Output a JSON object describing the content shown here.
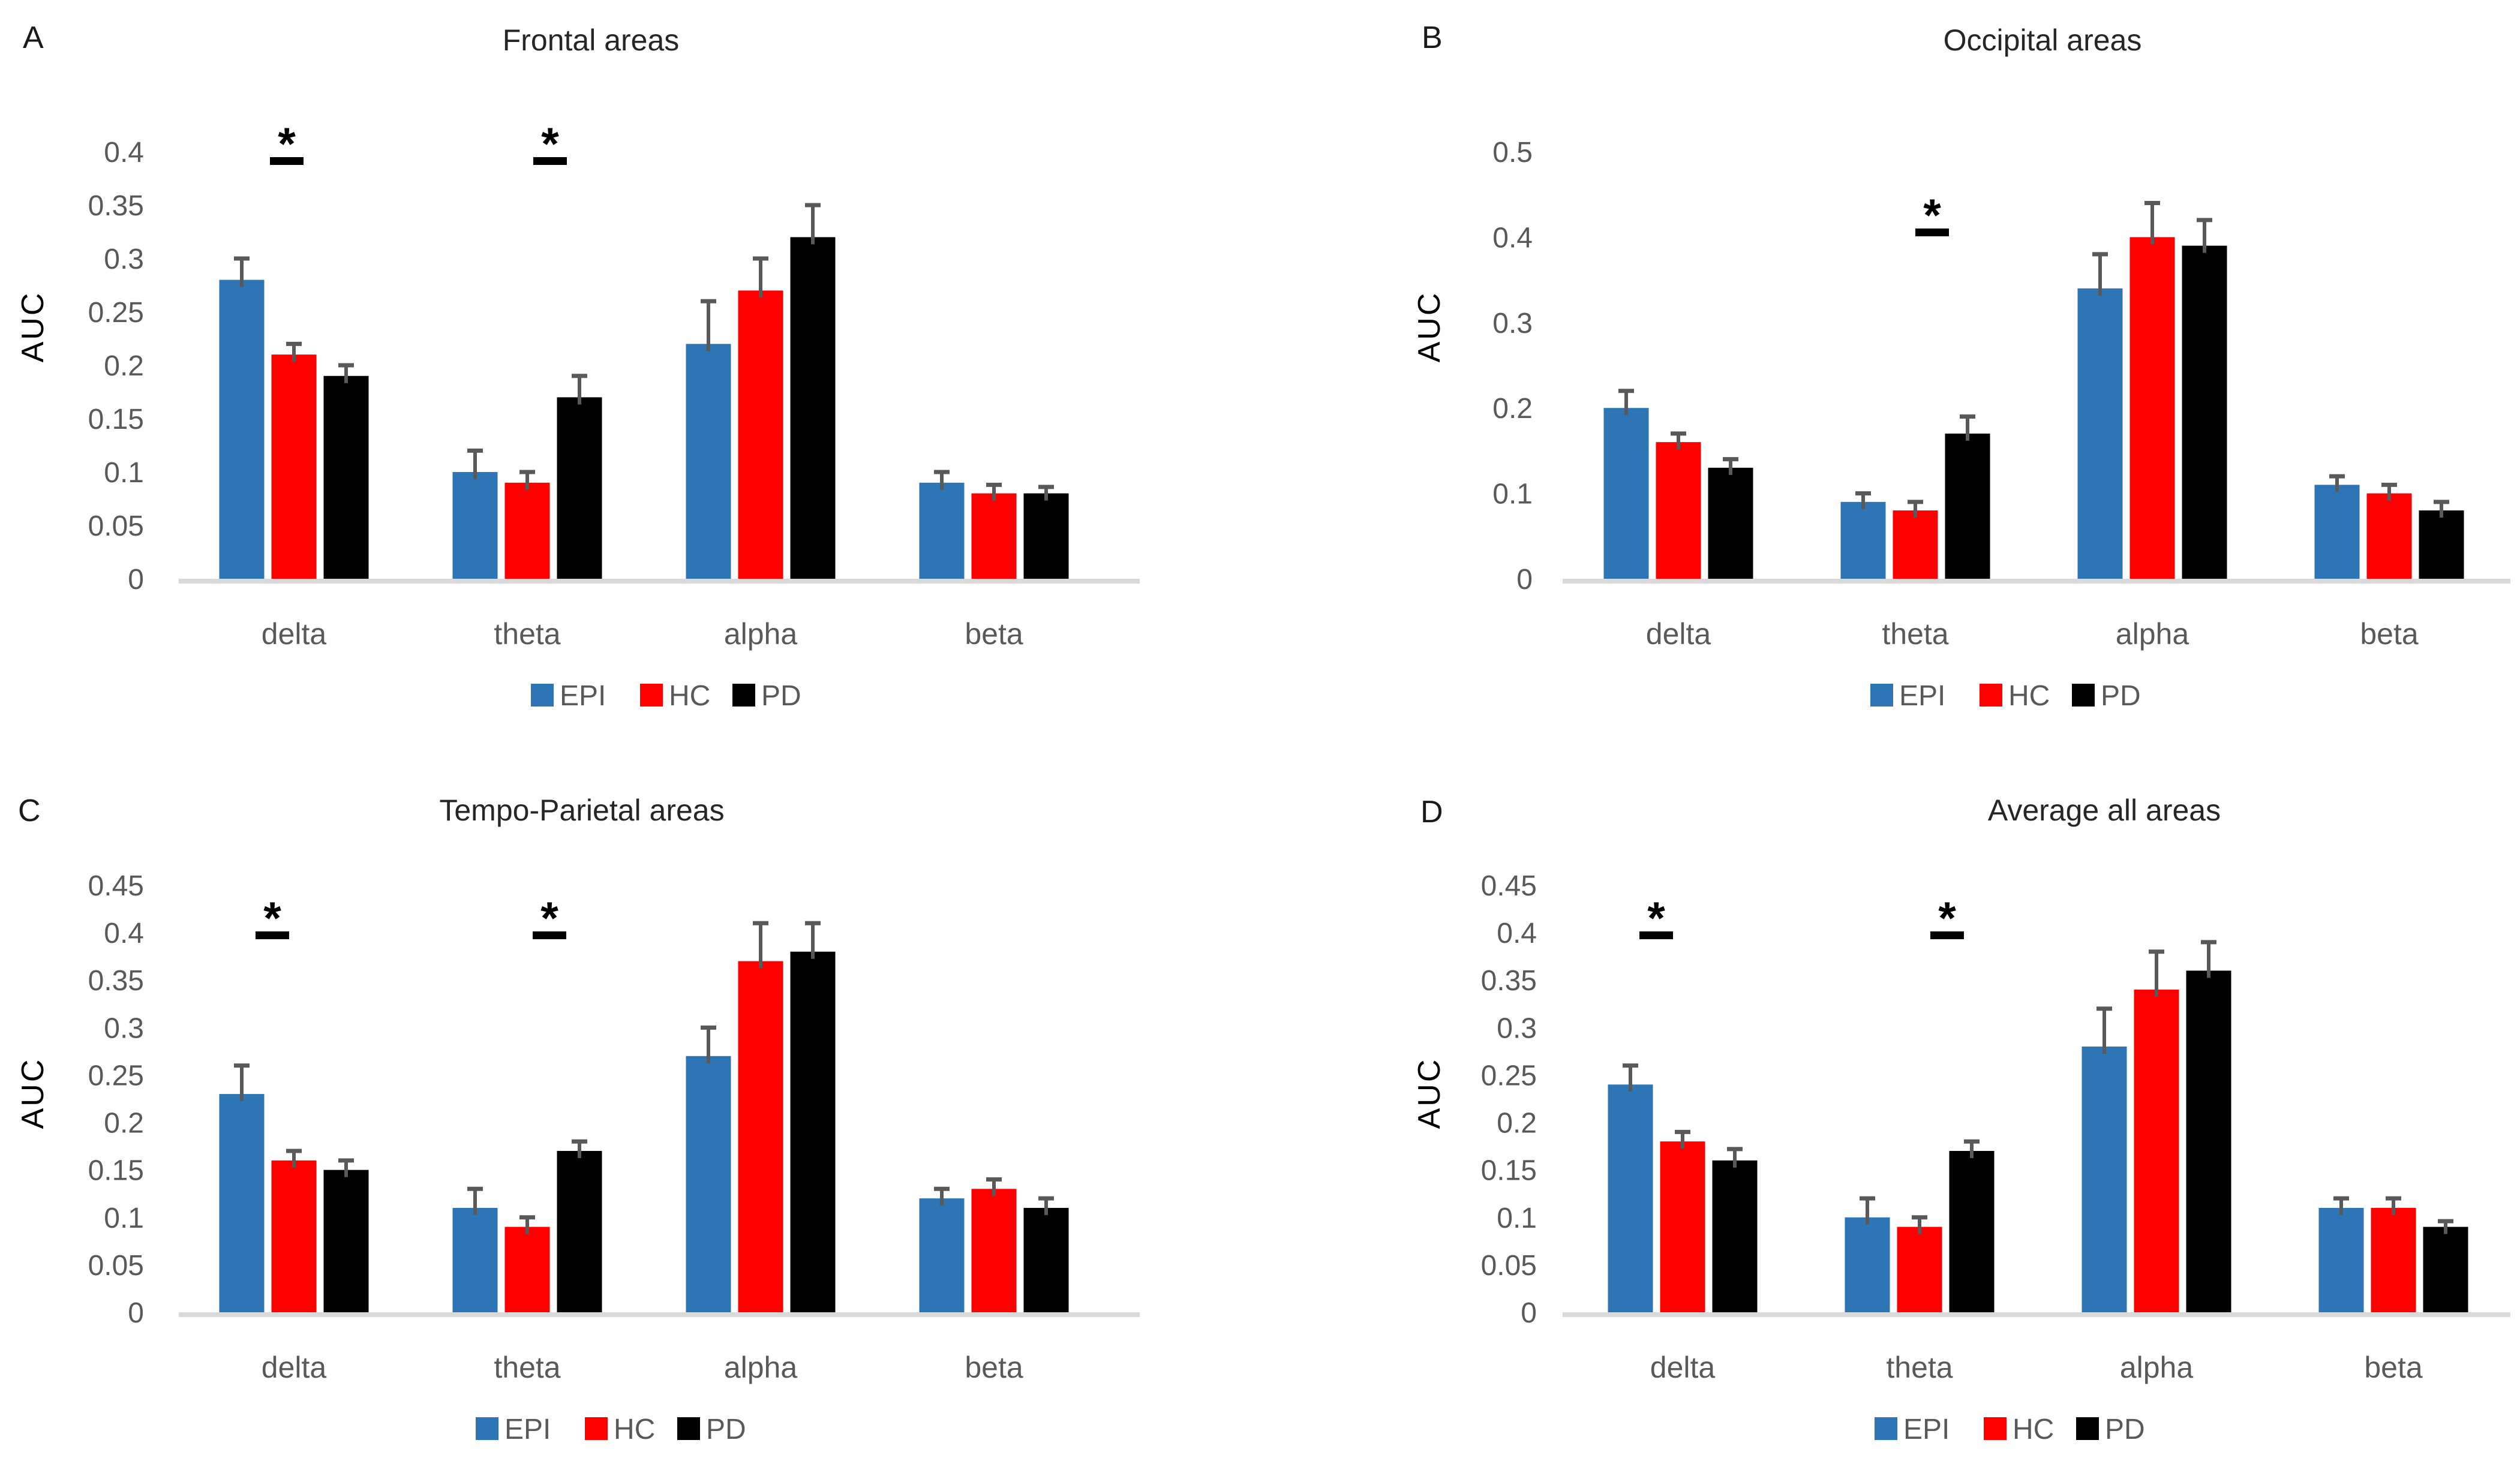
{
  "figure": {
    "kind": "four-panel scientific bar figure",
    "background": "#ffffff",
    "text_colors": {
      "title": "#262626",
      "panel_letter": "#1a1a1a",
      "axis_text": "#595959",
      "axis_title": "#000000",
      "significance": "#000000"
    },
    "axis_line_color": "#d9d9d9",
    "error_bar_color": "#595959",
    "significance_symbol": "*"
  },
  "chart_data": [
    {
      "type": "bar",
      "panel_label": "A",
      "title": "Frontal areas",
      "ylabel": "AUC",
      "xlabel": "",
      "ylim": [
        0,
        0.4
      ],
      "ystep": 0.05,
      "grid": false,
      "legend_position": "bottom",
      "categories": [
        "delta",
        "theta",
        "alpha",
        "beta"
      ],
      "series": [
        {
          "name": "EPI",
          "color": "#2E75B6",
          "values": [
            0.28,
            0.1,
            0.22,
            0.09
          ],
          "errors": [
            0.02,
            0.02,
            0.04,
            0.01
          ]
        },
        {
          "name": "HC",
          "color": "#FF0000",
          "values": [
            0.21,
            0.09,
            0.27,
            0.08
          ],
          "errors": [
            0.01,
            0.01,
            0.03,
            0.008
          ]
        },
        {
          "name": "PD",
          "color": "#000000",
          "values": [
            0.19,
            0.17,
            0.32,
            0.08
          ],
          "errors": [
            0.01,
            0.02,
            0.03,
            0.006
          ]
        }
      ],
      "significance": [
        {
          "category": "delta",
          "symbol": "*",
          "x_center": 478,
          "y_line": 262
        },
        {
          "category": "theta",
          "symbol": "*",
          "x_center": 917,
          "y_line": 262
        }
      ],
      "layout": {
        "letter_x": 38,
        "letter_y": 80,
        "title_cx": 985,
        "title_y": 84,
        "auc_cx": 72,
        "auc_cy": 545,
        "tick_right_x": 240,
        "group_centers": [
          490,
          879,
          1268,
          1657
        ],
        "baseline": [
          298,
          1900
        ],
        "legend_cx": 1110
      }
    },
    {
      "type": "bar",
      "panel_label": "B",
      "title": "Occipital areas",
      "ylabel": "AUC",
      "xlabel": "",
      "ylim": [
        0,
        0.5
      ],
      "ystep": 0.1,
      "grid": false,
      "legend_position": "bottom",
      "categories": [
        "delta",
        "theta",
        "alpha",
        "beta"
      ],
      "series": [
        {
          "name": "EPI",
          "color": "#2E75B6",
          "values": [
            0.2,
            0.09,
            0.34,
            0.11
          ],
          "errors": [
            0.02,
            0.01,
            0.04,
            0.01
          ]
        },
        {
          "name": "HC",
          "color": "#FF0000",
          "values": [
            0.16,
            0.08,
            0.4,
            0.1
          ],
          "errors": [
            0.01,
            0.01,
            0.04,
            0.01
          ]
        },
        {
          "name": "PD",
          "color": "#000000",
          "values": [
            0.13,
            0.17,
            0.39,
            0.08
          ],
          "errors": [
            0.01,
            0.02,
            0.03,
            0.01
          ]
        }
      ],
      "significance": [
        {
          "category": "theta",
          "symbol": "*",
          "x_center": 1121,
          "y_line": 381
        }
      ],
      "layout": {
        "letter_x": 270,
        "letter_y": 80,
        "title_cx": 1305,
        "title_y": 84,
        "auc_cx": 300,
        "auc_cy": 545,
        "tick_right_x": 455,
        "group_centers": [
          698,
          1093,
          1488,
          1883
        ],
        "baseline": [
          505,
          2085
        ],
        "legend_cx": 1243
      }
    },
    {
      "type": "bar",
      "panel_label": "C",
      "title": "Tempo-Parietal areas",
      "ylabel": "AUC",
      "xlabel": "",
      "ylim": [
        0,
        0.45
      ],
      "ystep": 0.05,
      "grid": false,
      "legend_position": "bottom",
      "categories": [
        "delta",
        "theta",
        "alpha",
        "beta"
      ],
      "series": [
        {
          "name": "EPI",
          "color": "#2E75B6",
          "values": [
            0.23,
            0.11,
            0.27,
            0.12
          ],
          "errors": [
            0.03,
            0.02,
            0.03,
            0.01
          ]
        },
        {
          "name": "HC",
          "color": "#FF0000",
          "values": [
            0.16,
            0.09,
            0.37,
            0.13
          ],
          "errors": [
            0.01,
            0.01,
            0.04,
            0.01
          ]
        },
        {
          "name": "PD",
          "color": "#000000",
          "values": [
            0.15,
            0.17,
            0.38,
            0.11
          ],
          "errors": [
            0.01,
            0.01,
            0.03,
            0.01
          ]
        }
      ],
      "significance": [
        {
          "category": "delta",
          "symbol": "*",
          "x_center": 454,
          "y_line": 330
        },
        {
          "category": "theta",
          "symbol": "*",
          "x_center": 916,
          "y_line": 330
        }
      ],
      "layout": {
        "letter_x": 30,
        "letter_y": 146,
        "title_cx": 970,
        "title_y": 145,
        "auc_cx": 72,
        "auc_cy": 600,
        "tick_right_x": 240,
        "group_centers": [
          490,
          879,
          1268,
          1657
        ],
        "baseline": [
          298,
          1900
        ],
        "legend_cx": 1018
      }
    },
    {
      "type": "bar",
      "panel_label": "D",
      "title": "Average all areas",
      "ylabel": "AUC",
      "xlabel": "",
      "ylim": [
        0,
        0.45
      ],
      "ystep": 0.05,
      "grid": false,
      "legend_position": "bottom",
      "categories": [
        "delta",
        "theta",
        "alpha",
        "beta"
      ],
      "series": [
        {
          "name": "EPI",
          "color": "#2E75B6",
          "values": [
            0.24,
            0.1,
            0.28,
            0.11
          ],
          "errors": [
            0.02,
            0.02,
            0.04,
            0.01
          ]
        },
        {
          "name": "HC",
          "color": "#FF0000",
          "values": [
            0.18,
            0.09,
            0.34,
            0.11
          ],
          "errors": [
            0.01,
            0.01,
            0.04,
            0.01
          ]
        },
        {
          "name": "PD",
          "color": "#000000",
          "values": [
            0.16,
            0.17,
            0.36,
            0.09
          ],
          "errors": [
            0.012,
            0.01,
            0.03,
            0.006
          ]
        }
      ],
      "significance": [
        {
          "category": "delta",
          "symbol": "*",
          "x_center": 661,
          "y_line": 330
        },
        {
          "category": "theta",
          "symbol": "*",
          "x_center": 1146,
          "y_line": 330
        }
      ],
      "layout": {
        "letter_x": 268,
        "letter_y": 148,
        "title_cx": 1408,
        "title_y": 145,
        "auc_cx": 300,
        "auc_cy": 600,
        "tick_right_x": 462,
        "group_centers": [
          705,
          1100,
          1495,
          1890
        ],
        "baseline": [
          505,
          2085
        ],
        "legend_cx": 1250
      }
    }
  ]
}
